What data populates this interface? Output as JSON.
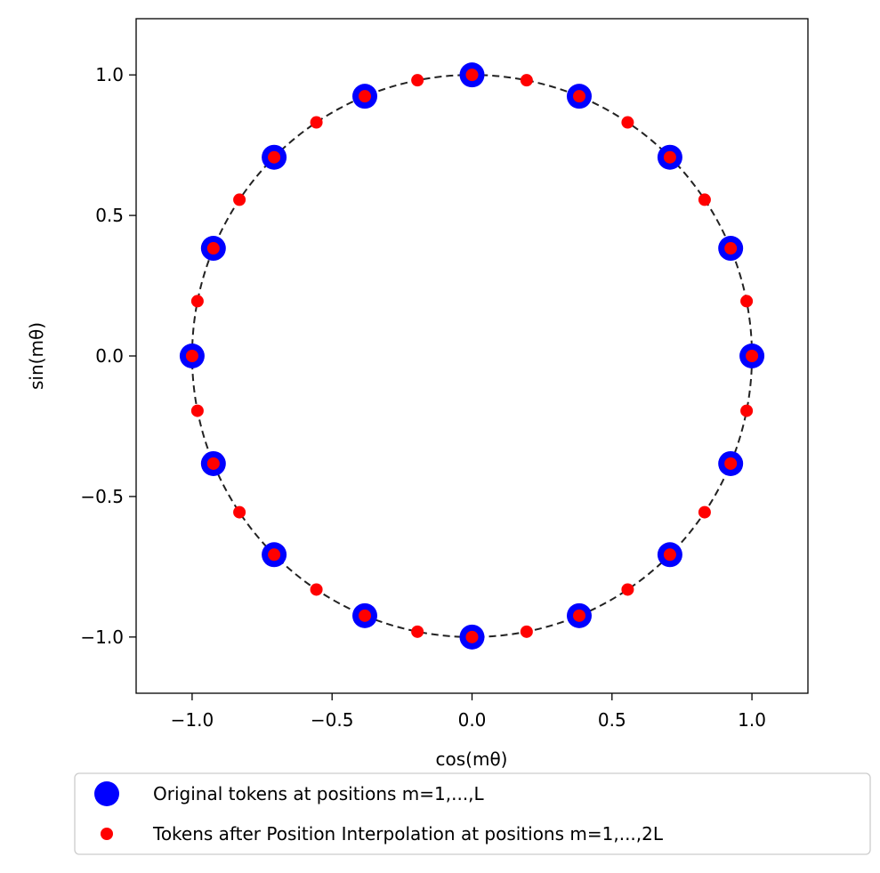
{
  "chart_data": {
    "type": "scatter",
    "title": "",
    "xlabel": "cos(mθ)",
    "ylabel": "sin(mθ)",
    "xlim": [
      -1.2,
      1.2
    ],
    "ylim": [
      -1.2,
      1.2
    ],
    "x_ticks": [
      -1.0,
      -0.5,
      0.0,
      0.5,
      1.0
    ],
    "y_ticks": [
      -1.0,
      -0.5,
      0.0,
      0.5,
      1.0
    ],
    "x_tick_labels": [
      "−1.0",
      "−0.5",
      "0.0",
      "0.5",
      "1.0"
    ],
    "y_tick_labels": [
      "−1.0",
      "−0.5",
      "0.0",
      "0.5",
      "1.0"
    ],
    "grid": false,
    "legend_position": "below",
    "reference_curve": {
      "type": "unit-circle",
      "style": "dashed",
      "color": "#222222"
    },
    "series": [
      {
        "name": "Original tokens at positions m=1,...,L",
        "color": "#0000ff",
        "marker": "large-circle",
        "points": [
          [
            1.0,
            0.0
          ],
          [
            0.924,
            0.383
          ],
          [
            0.707,
            0.707
          ],
          [
            0.383,
            0.924
          ],
          [
            0.0,
            1.0
          ],
          [
            -0.383,
            0.924
          ],
          [
            -0.707,
            0.707
          ],
          [
            -0.924,
            0.383
          ],
          [
            -1.0,
            0.0
          ],
          [
            -0.924,
            -0.383
          ],
          [
            -0.707,
            -0.707
          ],
          [
            -0.383,
            -0.924
          ],
          [
            0.0,
            -1.0
          ],
          [
            0.383,
            -0.924
          ],
          [
            0.707,
            -0.707
          ],
          [
            0.924,
            -0.383
          ]
        ]
      },
      {
        "name": "Tokens after Position Interpolation at positions m=1,...,2L",
        "color": "#ff0000",
        "marker": "small-circle",
        "points": [
          [
            1.0,
            0.0
          ],
          [
            0.981,
            0.195
          ],
          [
            0.924,
            0.383
          ],
          [
            0.831,
            0.556
          ],
          [
            0.707,
            0.707
          ],
          [
            0.556,
            0.831
          ],
          [
            0.383,
            0.924
          ],
          [
            0.195,
            0.981
          ],
          [
            0.0,
            1.0
          ],
          [
            -0.195,
            0.981
          ],
          [
            -0.383,
            0.924
          ],
          [
            -0.556,
            0.831
          ],
          [
            -0.707,
            0.707
          ],
          [
            -0.831,
            0.556
          ],
          [
            -0.924,
            0.383
          ],
          [
            -0.981,
            0.195
          ],
          [
            -1.0,
            0.0
          ],
          [
            -0.981,
            -0.195
          ],
          [
            -0.924,
            -0.383
          ],
          [
            -0.831,
            -0.556
          ],
          [
            -0.707,
            -0.707
          ],
          [
            -0.556,
            -0.831
          ],
          [
            -0.383,
            -0.924
          ],
          [
            -0.195,
            -0.981
          ],
          [
            0.0,
            -1.0
          ],
          [
            0.195,
            -0.981
          ],
          [
            0.383,
            -0.924
          ],
          [
            0.556,
            -0.831
          ],
          [
            0.707,
            -0.707
          ],
          [
            0.831,
            -0.556
          ],
          [
            0.924,
            -0.383
          ],
          [
            0.981,
            -0.195
          ]
        ]
      }
    ]
  }
}
